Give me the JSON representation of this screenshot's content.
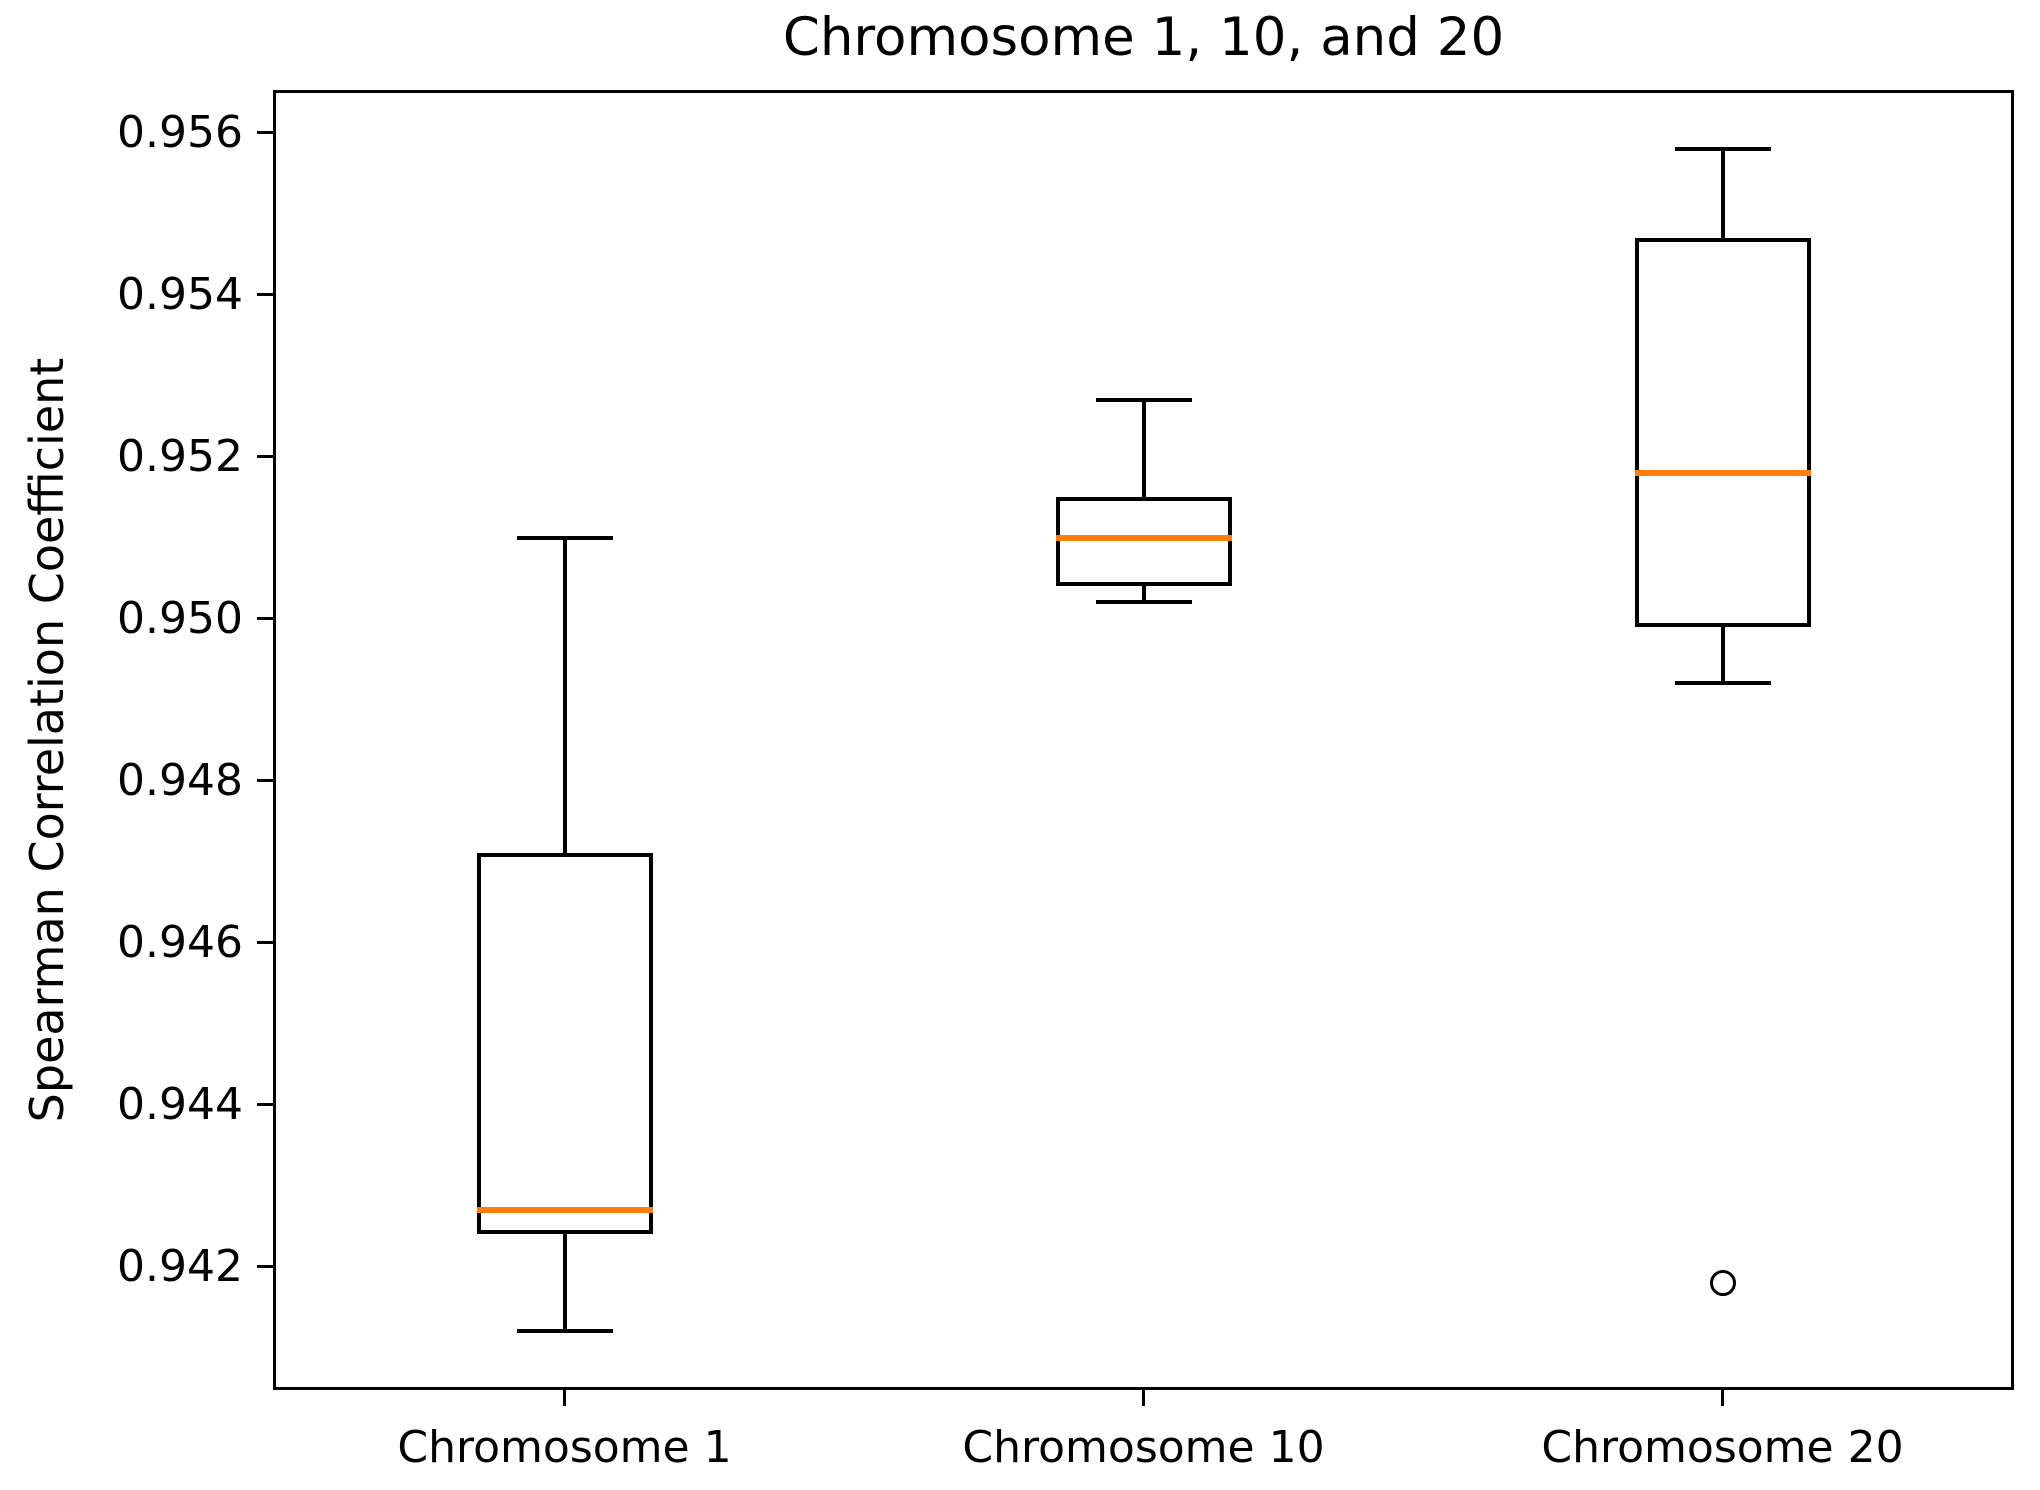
{
  "title": "Chromosome 1, 10, and 20",
  "ylabel": "Spearman Correlation Coefficient",
  "colors": {
    "median": "#ff7f0e",
    "axis": "#000000",
    "background": "#ffffff"
  },
  "chart_data": {
    "type": "boxplot",
    "title": "Chromosome 1, 10, and 20",
    "xlabel": "",
    "ylabel": "Spearman Correlation Coefficient",
    "grid": false,
    "categories": [
      "Chromosome 1",
      "Chromosome 10",
      "Chromosome 20"
    ],
    "ylim": [
      0.9405,
      0.9565
    ],
    "yticks": [
      0.942,
      0.944,
      0.946,
      0.948,
      0.95,
      0.952,
      0.954,
      0.956
    ],
    "ytick_labels": [
      "0.942",
      "0.944",
      "0.946",
      "0.948",
      "0.950",
      "0.952",
      "0.954",
      "0.956"
    ],
    "series": [
      {
        "label": "Chromosome 1",
        "whislo": 0.9412,
        "q1": 0.9424,
        "med": 0.9427,
        "q3": 0.9471,
        "whishi": 0.951,
        "fliers": []
      },
      {
        "label": "Chromosome 10",
        "whislo": 0.9502,
        "q1": 0.9504,
        "med": 0.951,
        "q3": 0.9515,
        "whishi": 0.9527,
        "fliers": []
      },
      {
        "label": "Chromosome 20",
        "whislo": 0.9492,
        "q1": 0.9499,
        "med": 0.9518,
        "q3": 0.9547,
        "whishi": 0.9558,
        "fliers": [
          0.9418
        ]
      }
    ]
  }
}
